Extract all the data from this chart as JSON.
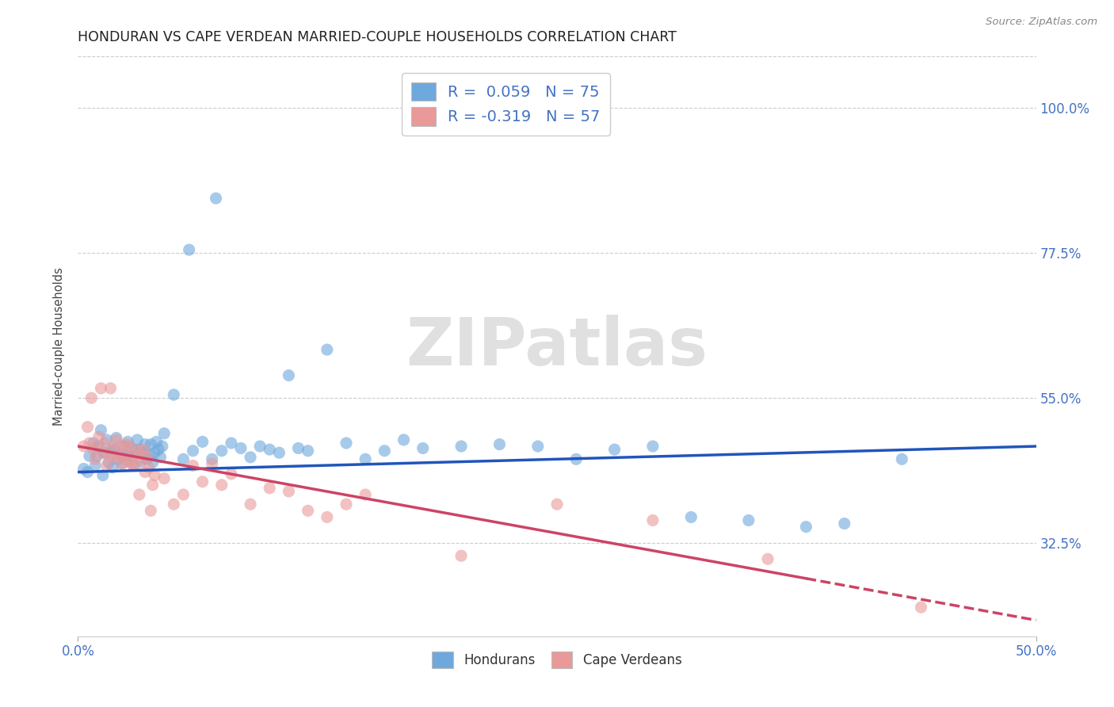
{
  "title": "HONDURAN VS CAPE VERDEAN MARRIED-COUPLE HOUSEHOLDS CORRELATION CHART",
  "source": "Source: ZipAtlas.com",
  "ylabel": "Married-couple Households",
  "xlim": [
    0.0,
    50.0
  ],
  "ylim": [
    18.0,
    108.0
  ],
  "ytick_labels": [
    "32.5%",
    "55.0%",
    "77.5%",
    "100.0%"
  ],
  "ytick_values": [
    32.5,
    55.0,
    77.5,
    100.0
  ],
  "xtick_labels": [
    "0.0%",
    "50.0%"
  ],
  "xtick_values": [
    0.0,
    50.0
  ],
  "background_color": "#ffffff",
  "blue_color": "#6fa8dc",
  "pink_color": "#ea9999",
  "blue_line_color": "#2255bb",
  "pink_line_color": "#cc4466",
  "legend1_blue_label": "R =  0.059   N = 75",
  "legend1_pink_label": "R = -0.319   N = 57",
  "hondurans_label": "Hondurans",
  "cape_verdeans_label": "Cape Verdeans",
  "watermark": "ZIPatlas",
  "blue_scatter_x": [
    0.3,
    0.5,
    0.6,
    0.8,
    0.9,
    1.0,
    1.1,
    1.2,
    1.3,
    1.4,
    1.5,
    1.6,
    1.7,
    1.8,
    1.9,
    2.0,
    2.1,
    2.2,
    2.3,
    2.4,
    2.5,
    2.6,
    2.7,
    2.8,
    2.9,
    3.0,
    3.1,
    3.2,
    3.3,
    3.4,
    3.5,
    3.6,
    3.7,
    3.8,
    3.9,
    4.0,
    4.1,
    4.2,
    4.3,
    4.4,
    4.5,
    5.0,
    5.5,
    6.0,
    6.5,
    7.0,
    7.5,
    8.0,
    8.5,
    9.0,
    9.5,
    10.0,
    10.5,
    11.0,
    11.5,
    12.0,
    13.0,
    14.0,
    15.0,
    16.0,
    17.0,
    18.0,
    20.0,
    22.0,
    24.0,
    26.0,
    28.0,
    30.0,
    32.0,
    35.0,
    38.0,
    40.0,
    43.0,
    7.2,
    5.8
  ],
  "blue_scatter_y": [
    44.0,
    43.5,
    46.0,
    48.0,
    44.5,
    46.0,
    47.5,
    50.0,
    43.0,
    46.5,
    48.5,
    45.0,
    46.8,
    44.2,
    47.0,
    48.8,
    45.5,
    46.2,
    44.8,
    47.5,
    46.0,
    48.2,
    45.8,
    47.2,
    44.5,
    46.8,
    48.5,
    47.0,
    45.2,
    46.5,
    47.8,
    45.5,
    46.2,
    47.8,
    45.0,
    46.5,
    48.2,
    47.0,
    45.8,
    47.5,
    49.5,
    55.5,
    45.5,
    46.8,
    48.2,
    45.5,
    46.8,
    48.0,
    47.2,
    45.8,
    47.5,
    47.0,
    46.5,
    58.5,
    47.2,
    46.8,
    62.5,
    48.0,
    45.5,
    46.8,
    48.5,
    47.2,
    47.5,
    47.8,
    47.5,
    45.5,
    47.0,
    47.5,
    36.5,
    36.0,
    35.0,
    35.5,
    45.5,
    86.0,
    78.0
  ],
  "pink_scatter_x": [
    0.3,
    0.5,
    0.6,
    0.7,
    0.8,
    0.9,
    1.0,
    1.1,
    1.2,
    1.3,
    1.4,
    1.5,
    1.6,
    1.7,
    1.8,
    1.9,
    2.0,
    2.1,
    2.2,
    2.3,
    2.4,
    2.5,
    2.6,
    2.7,
    2.8,
    2.9,
    3.0,
    3.1,
    3.2,
    3.3,
    3.4,
    3.5,
    3.6,
    3.7,
    3.8,
    3.9,
    4.0,
    4.5,
    5.0,
    5.5,
    6.0,
    6.5,
    7.0,
    7.5,
    8.0,
    9.0,
    10.0,
    11.0,
    12.0,
    13.0,
    14.0,
    15.0,
    20.0,
    25.0,
    30.0,
    36.0,
    44.0
  ],
  "pink_scatter_y": [
    47.5,
    50.5,
    48.0,
    55.0,
    47.0,
    45.5,
    47.5,
    49.0,
    56.5,
    46.5,
    48.0,
    44.5,
    46.0,
    56.5,
    47.2,
    45.8,
    48.5,
    46.0,
    47.5,
    44.8,
    46.2,
    47.8,
    45.2,
    47.5,
    44.8,
    46.2,
    44.5,
    46.8,
    40.0,
    45.5,
    47.0,
    43.5,
    45.8,
    44.2,
    37.5,
    41.5,
    43.0,
    42.5,
    38.5,
    40.0,
    44.5,
    42.0,
    44.8,
    41.5,
    43.2,
    38.5,
    41.0,
    40.5,
    37.5,
    36.5,
    38.5,
    40.0,
    30.5,
    38.5,
    36.0,
    30.0,
    22.5
  ],
  "blue_line_x0": 0.0,
  "blue_line_x1": 50.0,
  "blue_line_y0": 43.5,
  "blue_line_y1": 47.5,
  "pink_line_x0": 0.0,
  "pink_line_x1": 50.0,
  "pink_line_y0": 47.5,
  "pink_line_y1": 20.5,
  "pink_solid_end_x": 38.0,
  "title_fontsize": 12.5,
  "source_fontsize": 9.5,
  "watermark_fontsize": 60,
  "watermark_color": "#e0e0e0",
  "grid_color": "#cccccc",
  "right_axis_color": "#4472c4",
  "axis_tick_color": "#4472c4",
  "dot_size": 120
}
